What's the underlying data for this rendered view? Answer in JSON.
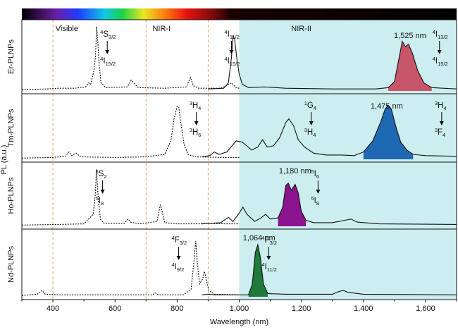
{
  "chart_data": {
    "type": "line",
    "xlabel": "Wavelength (nm)",
    "ylabel": "PL (a.u.)",
    "xlim": [
      300,
      1700
    ],
    "x_ticks": [
      400,
      600,
      800,
      1000,
      1200,
      1400,
      1600
    ],
    "x_tick_labels": [
      "400",
      "600",
      "800",
      "1,000",
      "1,200",
      "1,400",
      "1,600"
    ],
    "spectrum_bar": {
      "from": 300,
      "to": 1700
    },
    "regions": [
      {
        "label": "Visible",
        "from": 400,
        "to": 700
      },
      {
        "label": "NIR-I",
        "from": 700,
        "to": 900
      },
      {
        "label": "NIR-II",
        "from": 1000,
        "to": 1700
      }
    ],
    "divider_lines": [
      400,
      700,
      900
    ],
    "nir2_shade": {
      "from": 1000,
      "to": 1700,
      "color": "#cdeef0"
    },
    "panels": [
      {
        "name": "Er-PLNPs",
        "ylim": [
          0,
          1
        ],
        "dotted": [
          [
            300,
            0.02
          ],
          [
            380,
            0.03
          ],
          [
            420,
            0.04
          ],
          [
            470,
            0.04
          ],
          [
            505,
            0.06
          ],
          [
            515,
            0.12
          ],
          [
            522,
            0.1
          ],
          [
            532,
            0.3
          ],
          [
            537,
            0.5
          ],
          [
            541,
            0.96
          ],
          [
            545,
            0.7
          ],
          [
            549,
            0.4
          ],
          [
            555,
            0.12
          ],
          [
            570,
            0.05
          ],
          [
            640,
            0.06
          ],
          [
            652,
            0.16
          ],
          [
            660,
            0.12
          ],
          [
            675,
            0.05
          ],
          [
            760,
            0.04
          ],
          [
            830,
            0.06
          ],
          [
            843,
            0.2
          ],
          [
            852,
            0.08
          ],
          [
            870,
            0.04
          ],
          [
            940,
            0.04
          ],
          [
            960,
            0.08
          ],
          [
            975,
            0.12
          ],
          [
            990,
            0.05
          ],
          [
            1000,
            0.04
          ]
        ],
        "solid": [
          [
            900,
            0.03
          ],
          [
            950,
            0.04
          ],
          [
            965,
            0.12
          ],
          [
            975,
            0.5
          ],
          [
            980,
            0.82
          ],
          [
            985,
            0.78
          ],
          [
            992,
            0.5
          ],
          [
            1000,
            0.25
          ],
          [
            1010,
            0.1
          ],
          [
            1030,
            0.05
          ],
          [
            1080,
            0.06
          ],
          [
            1150,
            0.04
          ],
          [
            1300,
            0.03
          ],
          [
            1440,
            0.03
          ],
          [
            1480,
            0.05
          ],
          [
            1500,
            0.14
          ],
          [
            1515,
            0.5
          ],
          [
            1525,
            0.74
          ],
          [
            1535,
            0.66
          ],
          [
            1545,
            0.7
          ],
          [
            1558,
            0.56
          ],
          [
            1575,
            0.3
          ],
          [
            1595,
            0.12
          ],
          [
            1620,
            0.05
          ],
          [
            1700,
            0.03
          ]
        ],
        "emission_peak": {
          "label": "1,525 nm",
          "color": "#c8566b",
          "from": 1455,
          "to": 1630
        },
        "transitions": [
          {
            "upper": "4S",
            "upper_sub": "3/2",
            "lower": "4I",
            "lower_sub": "15/2"
          },
          {
            "upper": "4I",
            "upper_sub": "11/2",
            "lower": "4I",
            "lower_sub": "15/2"
          },
          {
            "upper": "4I",
            "upper_sub": "13/2",
            "lower": "4I",
            "lower_sub": "15/2"
          }
        ]
      },
      {
        "name": "Tm-PLNPs",
        "ylim": [
          0,
          1
        ],
        "dotted": [
          [
            300,
            0.02
          ],
          [
            400,
            0.03
          ],
          [
            440,
            0.05
          ],
          [
            452,
            0.12
          ],
          [
            460,
            0.06
          ],
          [
            475,
            0.1
          ],
          [
            490,
            0.04
          ],
          [
            600,
            0.03
          ],
          [
            700,
            0.04
          ],
          [
            760,
            0.08
          ],
          [
            780,
            0.3
          ],
          [
            790,
            0.65
          ],
          [
            800,
            0.86
          ],
          [
            805,
            0.86
          ],
          [
            812,
            0.6
          ],
          [
            822,
            0.25
          ],
          [
            835,
            0.08
          ],
          [
            860,
            0.04
          ],
          [
            950,
            0.03
          ],
          [
            1000,
            0.03
          ]
        ],
        "solid": [
          [
            880,
            0.04
          ],
          [
            905,
            0.06
          ],
          [
            920,
            0.12
          ],
          [
            935,
            0.08
          ],
          [
            960,
            0.12
          ],
          [
            990,
            0.3
          ],
          [
            1010,
            0.28
          ],
          [
            1040,
            0.15
          ],
          [
            1060,
            0.2
          ],
          [
            1075,
            0.32
          ],
          [
            1090,
            0.2
          ],
          [
            1110,
            0.22
          ],
          [
            1130,
            0.35
          ],
          [
            1150,
            0.6
          ],
          [
            1160,
            0.66
          ],
          [
            1175,
            0.55
          ],
          [
            1190,
            0.32
          ],
          [
            1210,
            0.2
          ],
          [
            1240,
            0.1
          ],
          [
            1280,
            0.07
          ],
          [
            1330,
            0.07
          ],
          [
            1370,
            0.06
          ],
          [
            1400,
            0.12
          ],
          [
            1430,
            0.3
          ],
          [
            1455,
            0.6
          ],
          [
            1470,
            0.82
          ],
          [
            1480,
            0.88
          ],
          [
            1490,
            0.82
          ],
          [
            1505,
            0.52
          ],
          [
            1520,
            0.28
          ],
          [
            1540,
            0.15
          ],
          [
            1560,
            0.08
          ],
          [
            1600,
            0.06
          ],
          [
            1700,
            0.05
          ]
        ],
        "emission_peak": {
          "label": "1,475 nm",
          "color": "#1f68b3",
          "from": 1385,
          "to": 1575
        },
        "transitions": [
          {
            "upper": "3H",
            "upper_sub": "4",
            "lower": "3H",
            "lower_sub": "6"
          },
          {
            "upper": "1G",
            "upper_sub": "4",
            "lower": "3H",
            "lower_sub": "4"
          },
          {
            "upper": "3H",
            "upper_sub": "4",
            "lower": "3F",
            "lower_sub": "4"
          }
        ]
      },
      {
        "name": "Ho-PLNPs",
        "ylim": [
          0,
          1
        ],
        "dotted": [
          [
            300,
            0.02
          ],
          [
            420,
            0.03
          ],
          [
            500,
            0.04
          ],
          [
            530,
            0.2
          ],
          [
            537,
            0.55
          ],
          [
            540,
            0.95
          ],
          [
            543,
            0.7
          ],
          [
            547,
            0.4
          ],
          [
            553,
            0.12
          ],
          [
            565,
            0.05
          ],
          [
            630,
            0.05
          ],
          [
            642,
            0.12
          ],
          [
            650,
            0.07
          ],
          [
            680,
            0.04
          ],
          [
            735,
            0.08
          ],
          [
            746,
            0.36
          ],
          [
            752,
            0.25
          ],
          [
            760,
            0.06
          ],
          [
            800,
            0.04
          ],
          [
            880,
            0.04
          ],
          [
            900,
            0.05
          ],
          [
            960,
            0.04
          ],
          [
            1000,
            0.04
          ]
        ],
        "solid": [
          [
            880,
            0.04
          ],
          [
            940,
            0.06
          ],
          [
            965,
            0.15
          ],
          [
            980,
            0.08
          ],
          [
            1000,
            0.22
          ],
          [
            1012,
            0.32
          ],
          [
            1025,
            0.2
          ],
          [
            1050,
            0.08
          ],
          [
            1070,
            0.14
          ],
          [
            1085,
            0.2
          ],
          [
            1100,
            0.12
          ],
          [
            1125,
            0.14
          ],
          [
            1140,
            0.32
          ],
          [
            1150,
            0.68
          ],
          [
            1158,
            0.72
          ],
          [
            1168,
            0.6
          ],
          [
            1180,
            0.7
          ],
          [
            1190,
            0.56
          ],
          [
            1200,
            0.25
          ],
          [
            1215,
            0.1
          ],
          [
            1240,
            0.06
          ],
          [
            1300,
            0.06
          ],
          [
            1340,
            0.1
          ],
          [
            1360,
            0.12
          ],
          [
            1380,
            0.07
          ],
          [
            1450,
            0.04
          ],
          [
            1700,
            0.03
          ]
        ],
        "emission_peak": {
          "label": "1,180 nm",
          "color": "#8b138e",
          "from": 1120,
          "to": 1215
        },
        "transitions": [
          {
            "upper": "5S",
            "upper_sub": "2",
            "lower": "5I",
            "lower_sub": "8"
          },
          {
            "upper": "5I",
            "upper_sub": "6",
            "lower": "5I",
            "lower_sub": "8"
          }
        ]
      },
      {
        "name": "Nd-PLNPs",
        "ylim": [
          0,
          1
        ],
        "dotted": [
          [
            300,
            0.02
          ],
          [
            350,
            0.04
          ],
          [
            365,
            0.1
          ],
          [
            375,
            0.04
          ],
          [
            420,
            0.03
          ],
          [
            600,
            0.03
          ],
          [
            720,
            0.03
          ],
          [
            730,
            0.06
          ],
          [
            740,
            0.03
          ],
          [
            820,
            0.03
          ],
          [
            845,
            0.12
          ],
          [
            855,
            0.6
          ],
          [
            860,
            0.88
          ],
          [
            865,
            0.55
          ],
          [
            872,
            0.2
          ],
          [
            882,
            0.28
          ],
          [
            888,
            0.4
          ],
          [
            893,
            0.3
          ],
          [
            902,
            0.1
          ],
          [
            920,
            0.04
          ],
          [
            1000,
            0.03
          ]
        ],
        "solid": [
          [
            880,
            0.03
          ],
          [
            900,
            0.04
          ],
          [
            920,
            0.03
          ],
          [
            1030,
            0.03
          ],
          [
            1042,
            0.2
          ],
          [
            1052,
            0.7
          ],
          [
            1060,
            0.82
          ],
          [
            1068,
            0.62
          ],
          [
            1078,
            0.2
          ],
          [
            1092,
            0.05
          ],
          [
            1150,
            0.04
          ],
          [
            1300,
            0.04
          ],
          [
            1320,
            0.08
          ],
          [
            1335,
            0.1
          ],
          [
            1350,
            0.07
          ],
          [
            1400,
            0.04
          ],
          [
            1700,
            0.03
          ]
        ],
        "emission_peak": {
          "label": "1,064 nm",
          "color": "#1f7a3c",
          "from": 1030,
          "to": 1095
        },
        "transitions": [
          {
            "upper": "4F",
            "upper_sub": "3/2",
            "lower": "4I",
            "lower_sub": "9/2"
          },
          {
            "upper": "4F",
            "upper_sub": "3/2",
            "lower": "4I",
            "lower_sub": "11/2"
          }
        ]
      }
    ]
  }
}
